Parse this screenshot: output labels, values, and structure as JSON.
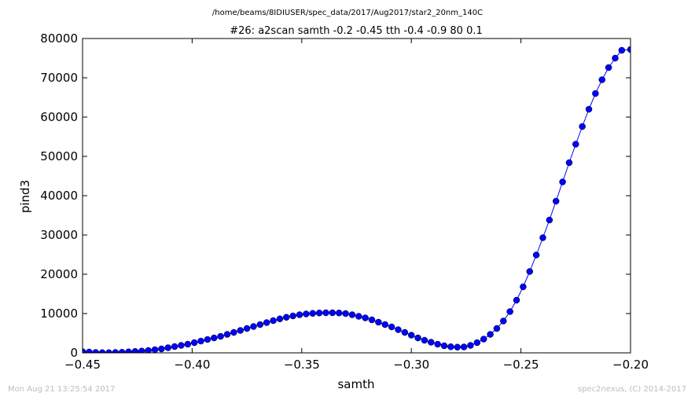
{
  "page": {
    "footer_left": "Mon Aug 21 13:25:54 2017",
    "footer_right": "spec2nexus, (C) 2014-2017"
  },
  "chart_data": {
    "type": "line",
    "title": "#26: a2scan  samth -0.2 -0.45  tth -0.4 -0.9  80 0.1",
    "subtitle": "/home/beams/8IDIUSER/spec_data/2017/Aug2017/star2_20nm_140C",
    "xlabel": "samth",
    "ylabel": "pind3",
    "xlim": [
      -0.45,
      -0.2
    ],
    "ylim": [
      0,
      80000
    ],
    "xticks": [
      -0.45,
      -0.4,
      -0.35,
      -0.3,
      -0.25,
      -0.2
    ],
    "xtick_labels": [
      "−0.45",
      "−0.40",
      "−0.35",
      "−0.30",
      "−0.25",
      "−0.20"
    ],
    "yticks": [
      0,
      10000,
      20000,
      30000,
      40000,
      50000,
      60000,
      70000,
      80000
    ],
    "ytick_labels": [
      "0",
      "10000",
      "20000",
      "30000",
      "40000",
      "50000",
      "60000",
      "70000",
      "80000"
    ],
    "grid": false,
    "legend": "none",
    "series": [
      {
        "color": "#0000ff",
        "marker": "circle",
        "x": [
          -0.45,
          -0.447,
          -0.444,
          -0.441,
          -0.438,
          -0.435,
          -0.432,
          -0.429,
          -0.426,
          -0.423,
          -0.42,
          -0.417,
          -0.414,
          -0.411,
          -0.408,
          -0.405,
          -0.402,
          -0.399,
          -0.396,
          -0.393,
          -0.39,
          -0.387,
          -0.384,
          -0.381,
          -0.378,
          -0.375,
          -0.372,
          -0.369,
          -0.366,
          -0.363,
          -0.36,
          -0.357,
          -0.354,
          -0.351,
          -0.348,
          -0.345,
          -0.342,
          -0.339,
          -0.336,
          -0.333,
          -0.33,
          -0.327,
          -0.324,
          -0.321,
          -0.318,
          -0.315,
          -0.312,
          -0.309,
          -0.306,
          -0.303,
          -0.3,
          -0.297,
          -0.294,
          -0.291,
          -0.288,
          -0.285,
          -0.282,
          -0.279,
          -0.276,
          -0.273,
          -0.27,
          -0.267,
          -0.264,
          -0.261,
          -0.258,
          -0.255,
          -0.252,
          -0.249,
          -0.246,
          -0.243,
          -0.24,
          -0.237,
          -0.234,
          -0.231,
          -0.228,
          -0.225,
          -0.222,
          -0.219,
          -0.216,
          -0.213,
          -0.21,
          -0.207,
          -0.204,
          -0.2
        ],
        "y": [
          300,
          200,
          100,
          50,
          50,
          100,
          150,
          250,
          350,
          450,
          600,
          800,
          1000,
          1300,
          1600,
          1900,
          2200,
          2600,
          3000,
          3400,
          3800,
          4200,
          4700,
          5200,
          5700,
          6200,
          6700,
          7200,
          7700,
          8200,
          8650,
          9050,
          9400,
          9700,
          9900,
          10050,
          10150,
          10200,
          10200,
          10150,
          10000,
          9700,
          9300,
          8900,
          8400,
          7800,
          7200,
          6600,
          5900,
          5200,
          4500,
          3800,
          3200,
          2700,
          2200,
          1800,
          1550,
          1450,
          1500,
          1900,
          2600,
          3500,
          4700,
          6200,
          8100,
          10500,
          13400,
          16800,
          20700,
          24900,
          29300,
          33800,
          38600,
          43500,
          48400,
          53100,
          57600,
          62000,
          66000,
          69500,
          72600,
          75000,
          77000,
          77200
        ]
      }
    ]
  }
}
